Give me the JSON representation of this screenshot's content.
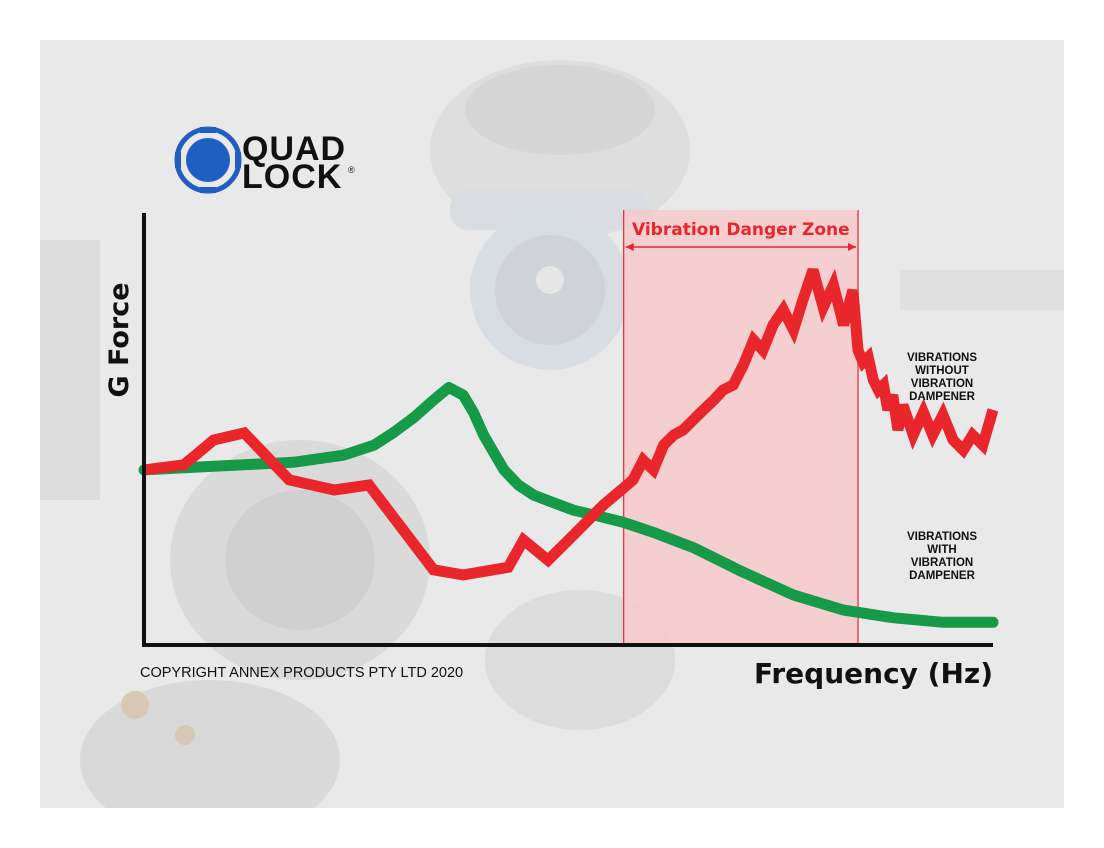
{
  "logo": {
    "line1": "QUAD",
    "line2": "LOCK",
    "mark": "®",
    "color": "#1f5fbf"
  },
  "copyright": "COPYRIGHT ANNEX PRODUCTS PTY LTD 2020",
  "colors": {
    "without_dampener": "#e8262b",
    "with_dampener": "#169a48",
    "danger_zone_fill": "#f7c9cb",
    "danger_zone_edge": "#e8262b",
    "axis": "#111111"
  },
  "chart_data": {
    "type": "line",
    "xlabel": "Frequency (Hz)",
    "ylabel": "G Force",
    "xlim": [
      0,
      100
    ],
    "ylim": [
      0,
      100
    ],
    "grid": false,
    "axis_ticks": false,
    "danger_zone": {
      "label": "Vibration Danger Zone",
      "x_start": 56.5,
      "x_end": 84.1
    },
    "series": [
      {
        "name": "VIBRATIONS WITHOUT VIBRATION DAMPENER",
        "name_lines": [
          "VIBRATIONS",
          "WITHOUT",
          "VIBRATION",
          "DAMPENER"
        ],
        "color": "#e8262b",
        "x": [
          0,
          4.7,
          8.2,
          11.8,
          17.1,
          22.4,
          26.5,
          34.1,
          37.6,
          42.9,
          44.7,
          47.6,
          50.0,
          54.1,
          57.6,
          58.8,
          60.0,
          61.2,
          62.4,
          63.5,
          64.7,
          65.9,
          67.1,
          68.2,
          69.4,
          70.6,
          71.8,
          72.9,
          74.1,
          75.3,
          76.5,
          77.6,
          78.8,
          80.0,
          81.2,
          82.4,
          83.5,
          84.1,
          84.7,
          85.3,
          85.9,
          86.5,
          87.1,
          87.6,
          88.2,
          88.8,
          89.4,
          90.6,
          91.8,
          92.9,
          94.1,
          95.3,
          96.5,
          97.6,
          98.8,
          100
        ],
        "y": [
          41.7,
          42.9,
          48.8,
          50.5,
          39.3,
          36.9,
          38.1,
          17.9,
          16.7,
          18.5,
          25.0,
          20.2,
          25.0,
          33.3,
          39.3,
          44.0,
          41.7,
          47.6,
          50.0,
          51.2,
          53.6,
          56.0,
          58.3,
          60.7,
          61.9,
          66.7,
          72.6,
          70.2,
          76.2,
          79.8,
          75.0,
          82.1,
          89.3,
          80.4,
          85.7,
          76.2,
          84.5,
          70.2,
          67.3,
          68.5,
          63.1,
          60.7,
          61.9,
          56.0,
          59.5,
          51.2,
          57.1,
          50.0,
          55.4,
          50.0,
          54.8,
          48.8,
          46.4,
          50.0,
          47.6,
          56.0
        ]
      },
      {
        "name": "VIBRATIONS WITH VIBRATION DAMPENER",
        "name_lines": [
          "VIBRATIONS",
          "WITH",
          "VIBRATION",
          "DAMPENER"
        ],
        "color": "#169a48",
        "x": [
          0,
          5.9,
          11.8,
          17.6,
          23.5,
          27.1,
          29.4,
          31.8,
          34.1,
          35.9,
          37.6,
          38.8,
          40.0,
          41.2,
          42.4,
          44.1,
          45.9,
          48.2,
          50.6,
          52.9,
          56.5,
          60.0,
          64.7,
          70.6,
          76.5,
          82.4,
          88.2,
          94.1,
          100
        ],
        "y": [
          41.7,
          42.3,
          42.9,
          43.5,
          45.2,
          47.6,
          50.6,
          54.2,
          58.3,
          61.3,
          59.5,
          55.4,
          50.0,
          45.8,
          41.7,
          38.1,
          35.7,
          33.9,
          32.1,
          31.0,
          29.2,
          26.8,
          23.2,
          17.3,
          11.9,
          8.3,
          6.5,
          5.4,
          5.4
        ]
      }
    ]
  }
}
